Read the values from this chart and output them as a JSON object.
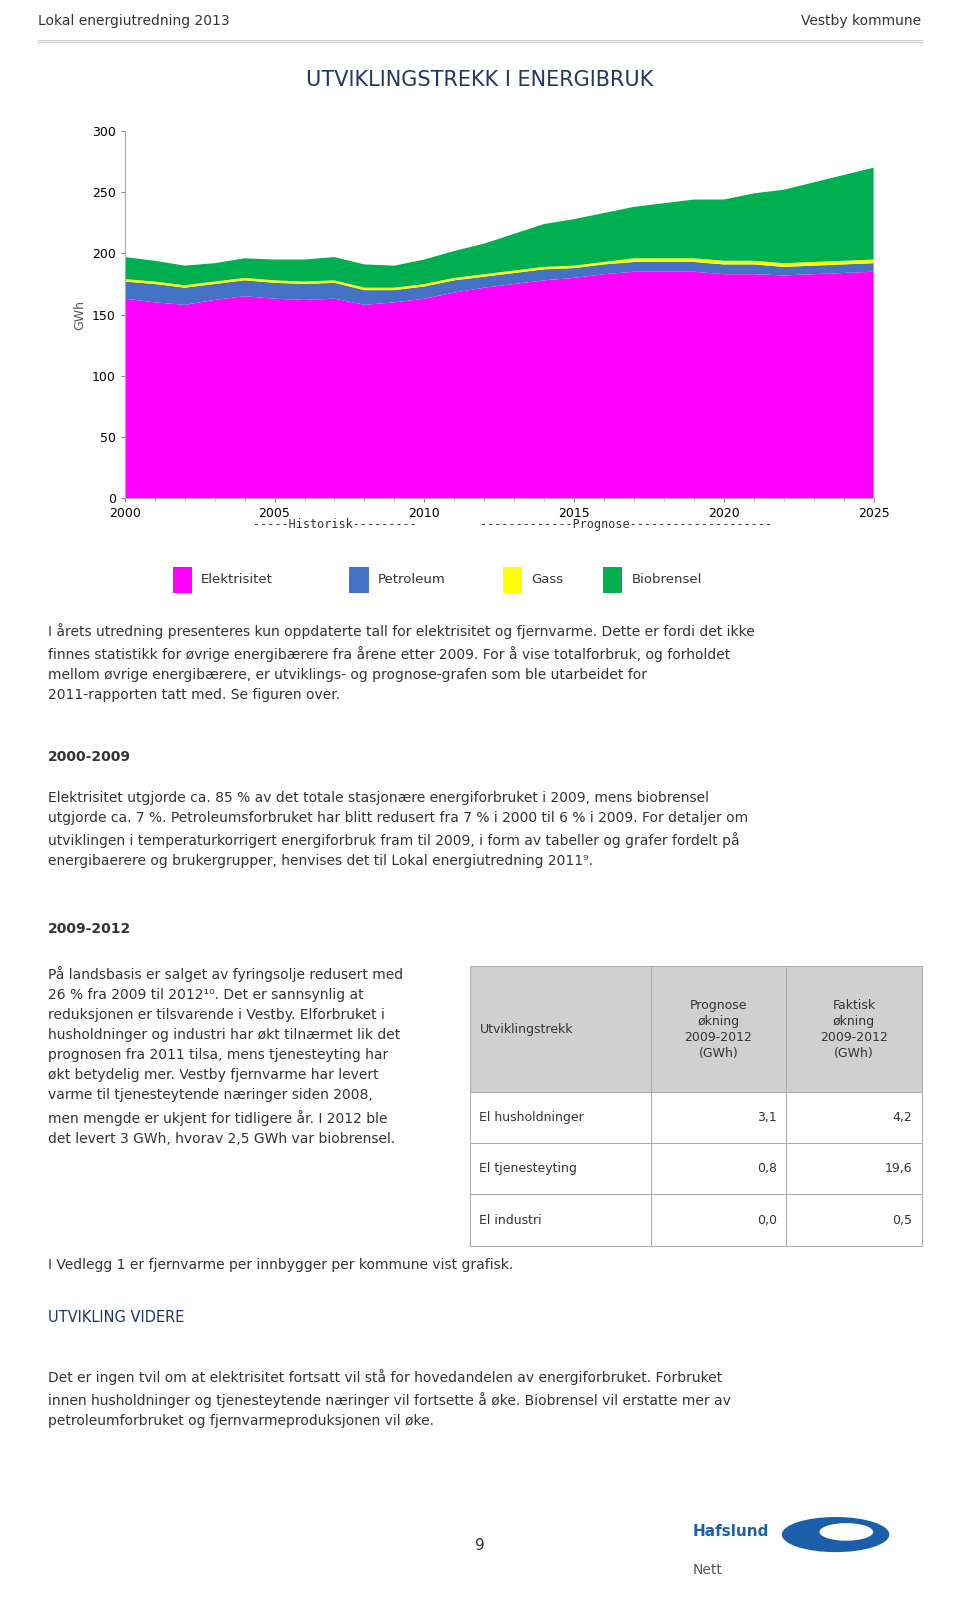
{
  "header_left": "Lokal energiutredning 2013",
  "header_right": "Vestby kommune",
  "chart_title": "Utviklingstrekk i energibruk",
  "ylabel": "GWh",
  "yticks": [
    0,
    50,
    100,
    150,
    200,
    250,
    300
  ],
  "xticks": [
    2000,
    2005,
    2010,
    2015,
    2020,
    2025
  ],
  "legend_items": [
    "Elektrisitet",
    "Petroleum",
    "Gass",
    "Biobrensel"
  ],
  "legend_colors": [
    "#FF00FF",
    "#4472C4",
    "#FFFF00",
    "#00B050"
  ],
  "years": [
    2000,
    2001,
    2002,
    2003,
    2004,
    2005,
    2006,
    2007,
    2008,
    2009,
    2010,
    2011,
    2012,
    2013,
    2014,
    2015,
    2016,
    2017,
    2018,
    2019,
    2020,
    2021,
    2022,
    2023,
    2024,
    2025
  ],
  "elektrisitet": [
    163,
    160,
    158,
    162,
    165,
    163,
    162,
    163,
    158,
    160,
    163,
    168,
    172,
    175,
    178,
    180,
    183,
    185,
    185,
    185,
    183,
    183,
    182,
    183,
    184,
    185
  ],
  "petroleum": [
    14,
    15,
    14,
    13,
    13,
    13,
    13,
    13,
    12,
    10,
    10,
    10,
    9,
    9,
    9,
    8,
    8,
    8,
    8,
    8,
    8,
    8,
    7,
    7,
    7,
    7
  ],
  "gass": [
    2,
    2,
    2,
    2,
    2,
    2,
    2,
    2,
    2,
    2,
    2,
    2,
    2,
    2,
    2,
    2,
    2,
    3,
    3,
    3,
    3,
    3,
    3,
    3,
    3,
    3
  ],
  "biobrensel": [
    18,
    17,
    16,
    15,
    16,
    17,
    18,
    19,
    19,
    18,
    20,
    22,
    25,
    30,
    35,
    38,
    40,
    42,
    45,
    48,
    50,
    55,
    60,
    65,
    70,
    75
  ],
  "historisk_end_year": 2012,
  "page_number": "9",
  "hafslund_color": "#1B5FAA",
  "background_color": "#FFFFFF",
  "body1": "I årets utredning presenteres kun oppdaterte tall for elektrisitet og fjernvarme. Dette er fordi det ikke\nfinnes statistikk for øvrige energibærere fra årene etter 2009. For å vise totalforbruk, og forholdet\nmellom øvrige energibærere, er utviklings- og prognose-grafen som ble utarbeidet for\n2011-rapporten tatt med. Se figuren over.",
  "heading1": "2000-2009",
  "body2": "Elektrisitet utgjorde ca. 85 % av det totale stasjonære energiforbruket i 2009, mens biobrensel\nutgjorde ca. 7 %. Petroleumsforbruket har blitt redusert fra 7 % i 2000 til 6 % i 2009. For detaljer om\nutviklingen i temperaturkorrigert energiforbruk fram til 2009, i form av tabeller og grafer fordelt på\nenergibaerere og brukergrupper, henvises det til Lokal energiutredning 2011⁹.",
  "heading2": "2009-2012",
  "body3": "På landsbasis er salget av fyringsolje redusert med\n26 % fra 2009 til 2012¹⁰. Det er sannsynlig at\nreduksjonen er tilsvarende i Vestby. Elforbruket i\nhusholdninger og industri har økt tilnærmet lik det\nprognosen fra 2011 tilsa, mens tjenesteyting har\nøkt betydelig mer. Vestby fjernvarme har levert\nvarme til tjenesteytende næringer siden 2008,\nmen mengde er ukjent for tidligere år. I 2012 ble\ndet levert 3 GWh, hvorav 2,5 GWh var biobrensel.",
  "body4": "I Vedlegg 1 er fjernvarme per innbygger per kommune vist grafisk.",
  "heading3": "Utvikling videre",
  "body5": "Det er ingen tvil om at elektrisitet fortsatt vil stå for hovedandelen av energiforbruket. Forbruket\ninnen husholdninger og tjenesteytende næringer vil fortsette å øke. Biobrensel vil erstatte mer av\npetroleumforbruket og fjernvarmeproduksjonen vil øke.",
  "table_col0": [
    "Utviklingstrekk",
    "El husholdninger",
    "El tjenesteyting",
    "El industri"
  ],
  "table_col1_header": "Prognose\nøkning\n2009-2012\n(GWh)",
  "table_col2_header": "Faktisk\nøkning\n2009-2012\n(GWh)",
  "table_col1": [
    "3,1",
    "0,8",
    "0,0"
  ],
  "table_col2": [
    "4,2",
    "19,6",
    "0,5"
  ]
}
